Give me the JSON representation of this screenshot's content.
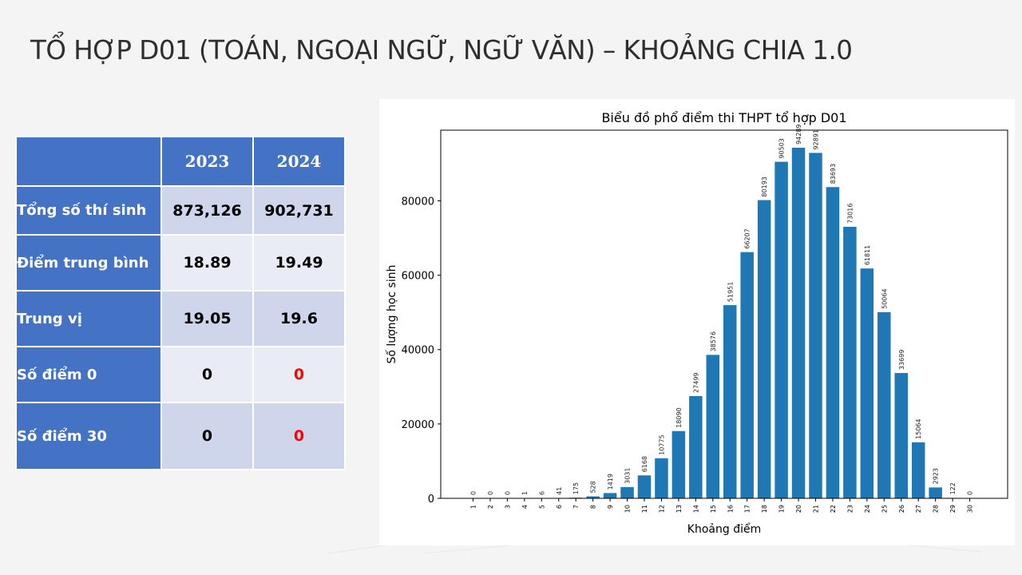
{
  "slide": {
    "title": "TỔ HỢP D01 (TOÁN, NGOẠI NGỮ, NGỮ VĂN) – KHOẢNG CHIA 1.0"
  },
  "table": {
    "years": [
      "2023",
      "2024"
    ],
    "rows": [
      {
        "label": "Tổng số thí sinh",
        "v2023": "873,126",
        "v2024": "902,731"
      },
      {
        "label": "Điểm trung bình",
        "v2023": "18.89",
        "v2024": "19.49"
      },
      {
        "label": "Trung vị",
        "v2023": "19.05",
        "v2024": "19.6"
      },
      {
        "label": "Số điểm 0",
        "v2023": "0",
        "v2024": "0"
      },
      {
        "label": "Số điểm 30",
        "v2023": "0",
        "v2024": "0"
      }
    ],
    "highlight_color": "#ff0000"
  },
  "chart_data": {
    "type": "bar",
    "title": "Biểu đồ phổ điểm thi THPT tổ hợp D01",
    "xlabel": "Khoảng điểm",
    "ylabel": "Số lượng học sinh",
    "categories": [
      "1",
      "2",
      "3",
      "4",
      "5",
      "6",
      "7",
      "8",
      "9",
      "10",
      "11",
      "12",
      "13",
      "14",
      "15",
      "16",
      "17",
      "18",
      "19",
      "20",
      "21",
      "22",
      "23",
      "24",
      "25",
      "26",
      "27",
      "28",
      "29",
      "30"
    ],
    "values": [
      0,
      0,
      0,
      1,
      6,
      41,
      175,
      528,
      1419,
      3031,
      6168,
      10775,
      18090,
      27499,
      38576,
      51951,
      66207,
      80193,
      90503,
      94289,
      92891,
      83693,
      73016,
      61811,
      50064,
      33699,
      15064,
      2923,
      122,
      0
    ],
    "yticks": [
      0,
      20000,
      40000,
      60000,
      80000
    ],
    "ylim": [
      0,
      99000
    ],
    "bar_color": "#1f77b4",
    "grid": false
  }
}
